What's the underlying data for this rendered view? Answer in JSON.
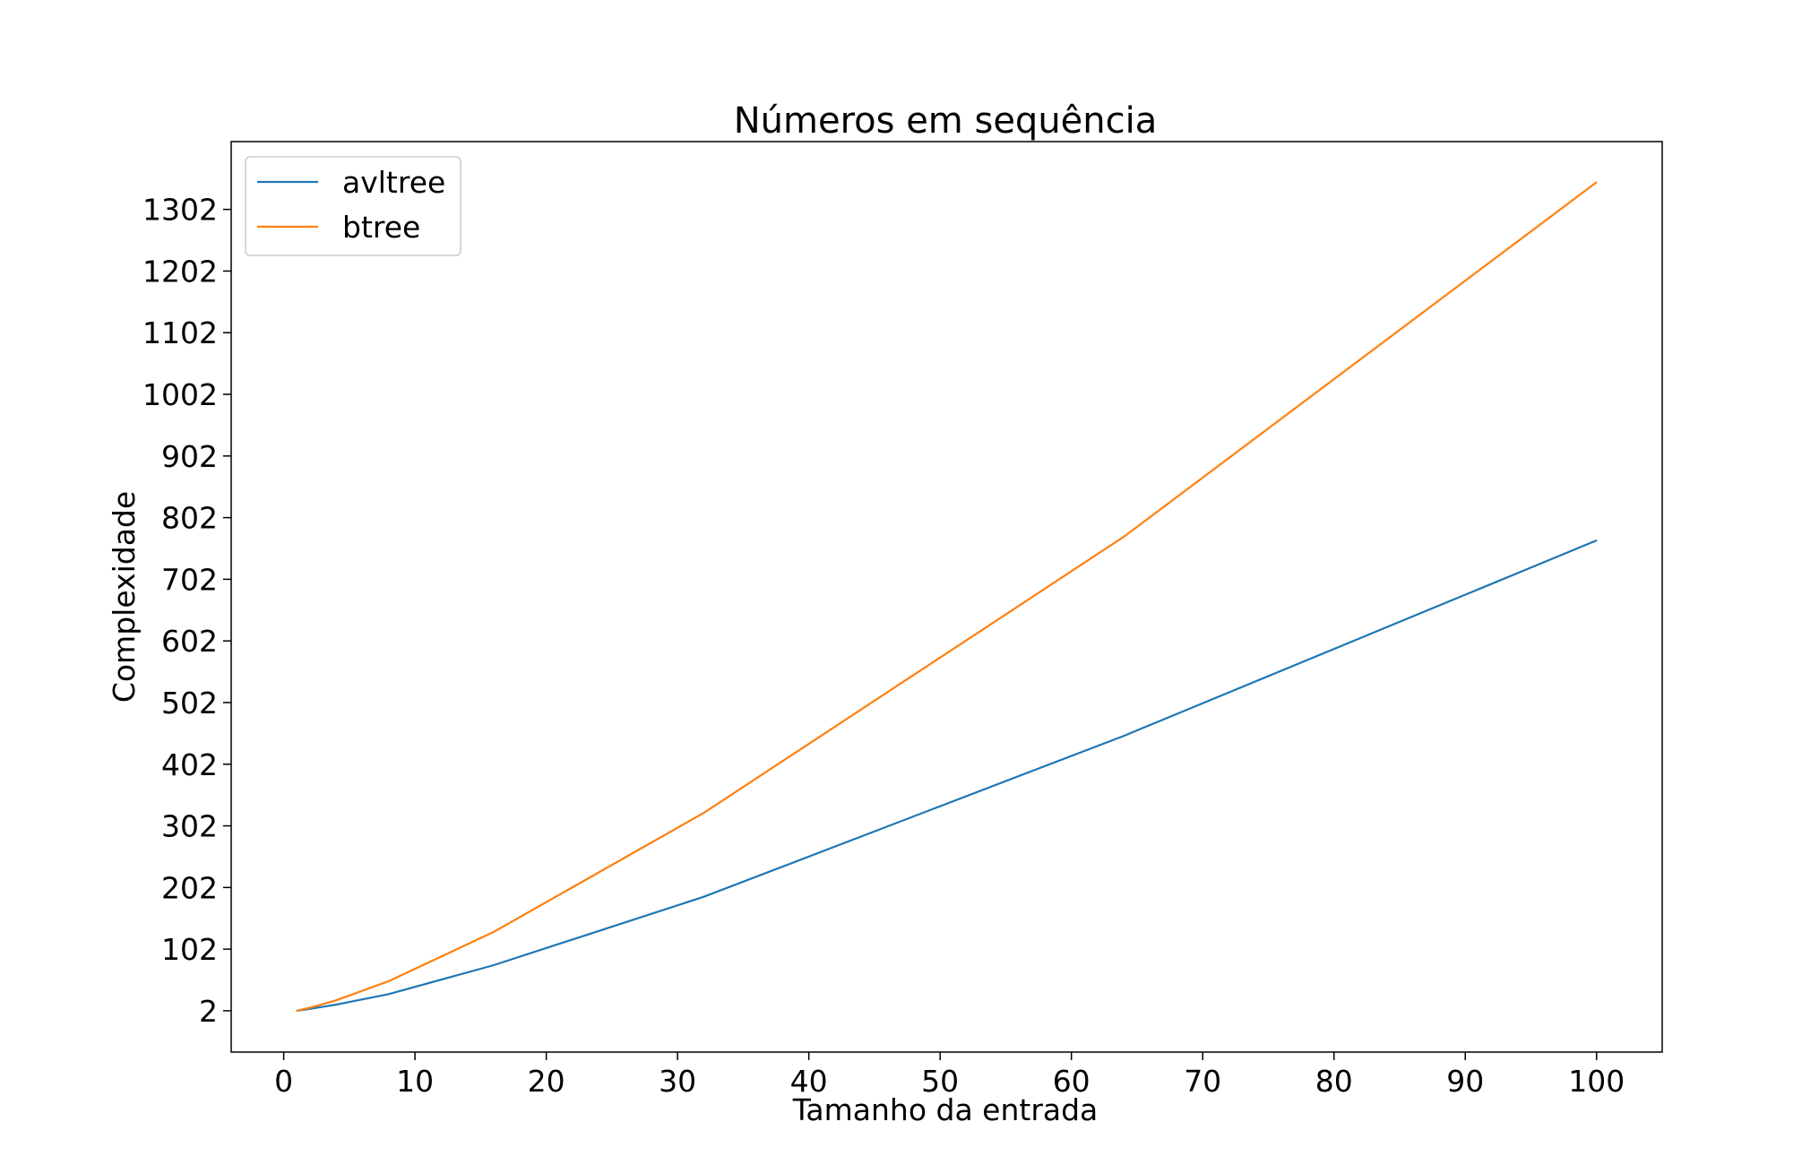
{
  "chart_data": {
    "type": "line",
    "title": "Números em sequência",
    "xlabel": "Tamanho da entrada",
    "ylabel": "Complexidade",
    "xlim": [
      -4,
      105
    ],
    "ylim": [
      -65,
      1412
    ],
    "xticks": [
      0,
      10,
      20,
      30,
      40,
      50,
      60,
      70,
      80,
      90,
      100
    ],
    "yticks": [
      2,
      102,
      202,
      302,
      402,
      502,
      602,
      702,
      802,
      902,
      1002,
      1102,
      1202,
      1302
    ],
    "grid": false,
    "legend_position": "top-left",
    "series": [
      {
        "name": "avltree",
        "color": "#1f77b4",
        "x": [
          1,
          2,
          4,
          8,
          16,
          32,
          64,
          100
        ],
        "y": [
          2,
          5,
          12,
          29,
          76,
          187,
          448,
          765
        ]
      },
      {
        "name": "btree",
        "color": "#ff7f0e",
        "x": [
          1,
          2,
          4,
          8,
          16,
          32,
          64,
          100
        ],
        "y": [
          2,
          7,
          19,
          50,
          130,
          323,
          771,
          1346
        ]
      }
    ]
  }
}
